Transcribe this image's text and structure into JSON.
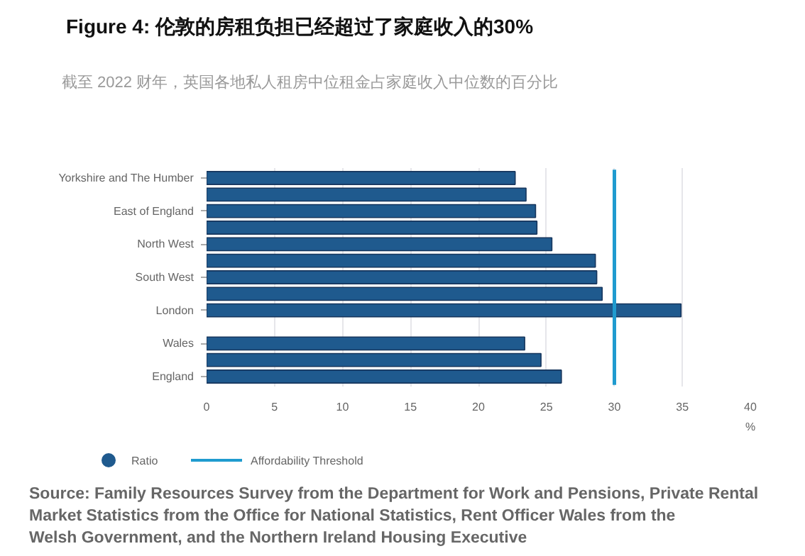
{
  "chart_data": {
    "type": "bar",
    "orientation": "horizontal",
    "title": "Figure 4: 伦敦的房租负担已经超过了家庭收入的30%",
    "subtitle": "截至 2022 财年，英国各地私人租房中位租金占家庭收入中位数的百分比",
    "xlabel": "%",
    "categories": [
      "Yorkshire and The Humber",
      null,
      "East of England",
      null,
      "North West",
      null,
      "South West",
      null,
      "London",
      null,
      "Wales",
      null,
      "England"
    ],
    "series": [
      {
        "name": "Ratio",
        "color": "#1f5a8e",
        "values": [
          22.7,
          23.5,
          24.2,
          24.3,
          25.4,
          28.6,
          28.7,
          29.1,
          34.9,
          null,
          23.4,
          24.6,
          26.1
        ]
      }
    ],
    "xlim": [
      0,
      40
    ],
    "xticks": [
      0,
      5,
      10,
      15,
      20,
      25,
      30,
      35,
      40
    ],
    "grid": "x",
    "legend": "bottom",
    "ref_lines": [
      {
        "axis": "x",
        "value": 30,
        "label": "Affordability Threshold",
        "color": "#1f9bcf"
      }
    ],
    "annotations": [
      "Source: Family Resources Survey from the Department for Work and Pensions, Private Rental Market Statistics from the Office for National Statistics, Rent Officer Wales from the Welsh Government, and the Northern Ireland Housing Executive"
    ]
  }
}
